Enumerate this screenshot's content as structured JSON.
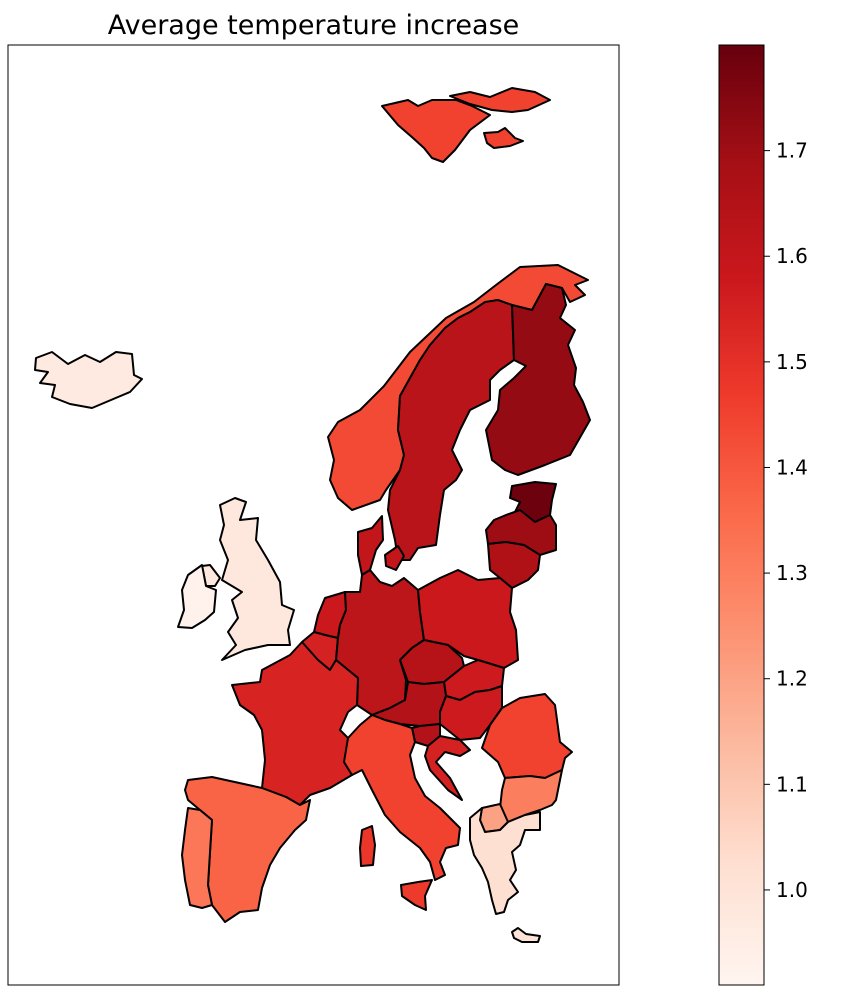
{
  "title": "Average temperature increase",
  "colors": {
    "background": "#ffffff",
    "border": "#000000",
    "scale": [
      "#fff5f0",
      "#fee0d2",
      "#fcbba1",
      "#fc9272",
      "#fb6a4a",
      "#ef3b2c",
      "#cb181d",
      "#a50f15",
      "#67000d"
    ]
  },
  "colorbar": {
    "min": 0.91,
    "max": 1.8,
    "ticks": [
      "1.0",
      "1.1",
      "1.2",
      "1.3",
      "1.4",
      "1.5",
      "1.6",
      "1.7"
    ]
  },
  "regions": [
    {
      "id": "svalbard",
      "value": 1.45
    },
    {
      "id": "iceland",
      "value": 0.97
    },
    {
      "id": "norway",
      "value": 1.43
    },
    {
      "id": "sweden",
      "value": 1.63
    },
    {
      "id": "finland",
      "value": 1.72
    },
    {
      "id": "estonia",
      "value": 1.79
    },
    {
      "id": "latvia",
      "value": 1.7
    },
    {
      "id": "lithuania",
      "value": 1.66
    },
    {
      "id": "uk",
      "value": 0.98
    },
    {
      "id": "ireland",
      "value": 0.93
    },
    {
      "id": "denmark",
      "value": 1.6
    },
    {
      "id": "netherlands",
      "value": 1.58
    },
    {
      "id": "belgium",
      "value": 1.55
    },
    {
      "id": "germany",
      "value": 1.62
    },
    {
      "id": "poland",
      "value": 1.58
    },
    {
      "id": "czechia",
      "value": 1.64
    },
    {
      "id": "slovakia",
      "value": 1.57
    },
    {
      "id": "austria",
      "value": 1.65
    },
    {
      "id": "hungary",
      "value": 1.57
    },
    {
      "id": "slovenia",
      "value": 1.65
    },
    {
      "id": "croatia",
      "value": 1.55
    },
    {
      "id": "romania",
      "value": 1.45
    },
    {
      "id": "bulgaria",
      "value": 1.3
    },
    {
      "id": "north-macedonia",
      "value": 1.2
    },
    {
      "id": "greece",
      "value": 1.02
    },
    {
      "id": "crete",
      "value": 1.0
    },
    {
      "id": "france",
      "value": 1.54
    },
    {
      "id": "italy",
      "value": 1.45
    },
    {
      "id": "sardinia",
      "value": 1.48
    },
    {
      "id": "sicily",
      "value": 1.47
    },
    {
      "id": "spain",
      "value": 1.37
    },
    {
      "id": "portugal",
      "value": 1.32
    }
  ]
}
